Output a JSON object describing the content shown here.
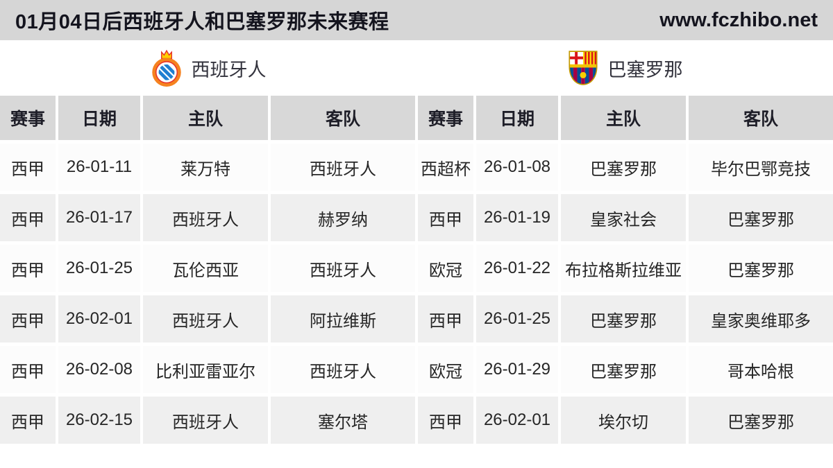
{
  "topbar": {
    "title": "01月04日后西班牙人和巴塞罗那未来赛程",
    "site_url": "www.fczhibo.net"
  },
  "teams": {
    "left": {
      "name": "西班牙人",
      "icon": "espanyol-crest"
    },
    "right": {
      "name": "巴塞罗那",
      "icon": "barcelona-crest"
    }
  },
  "table": {
    "columns": [
      "赛事",
      "日期",
      "主队",
      "客队"
    ],
    "left_rows": [
      [
        "西甲",
        "26-01-11",
        "莱万特",
        "西班牙人"
      ],
      [
        "西甲",
        "26-01-17",
        "西班牙人",
        "赫罗纳"
      ],
      [
        "西甲",
        "26-01-25",
        "瓦伦西亚",
        "西班牙人"
      ],
      [
        "西甲",
        "26-02-01",
        "西班牙人",
        "阿拉维斯"
      ],
      [
        "西甲",
        "26-02-08",
        "比利亚雷亚尔",
        "西班牙人"
      ],
      [
        "西甲",
        "26-02-15",
        "西班牙人",
        "塞尔塔"
      ]
    ],
    "right_rows": [
      [
        "西超杯",
        "26-01-08",
        "巴塞罗那",
        "毕尔巴鄂竞技"
      ],
      [
        "西甲",
        "26-01-19",
        "皇家社会",
        "巴塞罗那"
      ],
      [
        "欧冠",
        "26-01-22",
        "布拉格斯拉维亚",
        "巴塞罗那"
      ],
      [
        "西甲",
        "26-01-25",
        "巴塞罗那",
        "皇家奥维耶多"
      ],
      [
        "欧冠",
        "26-01-29",
        "巴塞罗那",
        "哥本哈根"
      ],
      [
        "西甲",
        "26-02-01",
        "埃尔切",
        "巴塞罗那"
      ]
    ]
  },
  "colors": {
    "topbar_bg": "#d6d6d6",
    "header_bg": "#d8d8d8",
    "row_light": "#fcfcfc",
    "row_dark": "#efefef",
    "text": "#262626",
    "text_dark": "#14141e",
    "espanyol_blue": "#1f7fd1",
    "espanyol_orange": "#f5821f",
    "barca_blue": "#004d98",
    "barca_garnet": "#a50044",
    "barca_yellow": "#fcdd09"
  }
}
